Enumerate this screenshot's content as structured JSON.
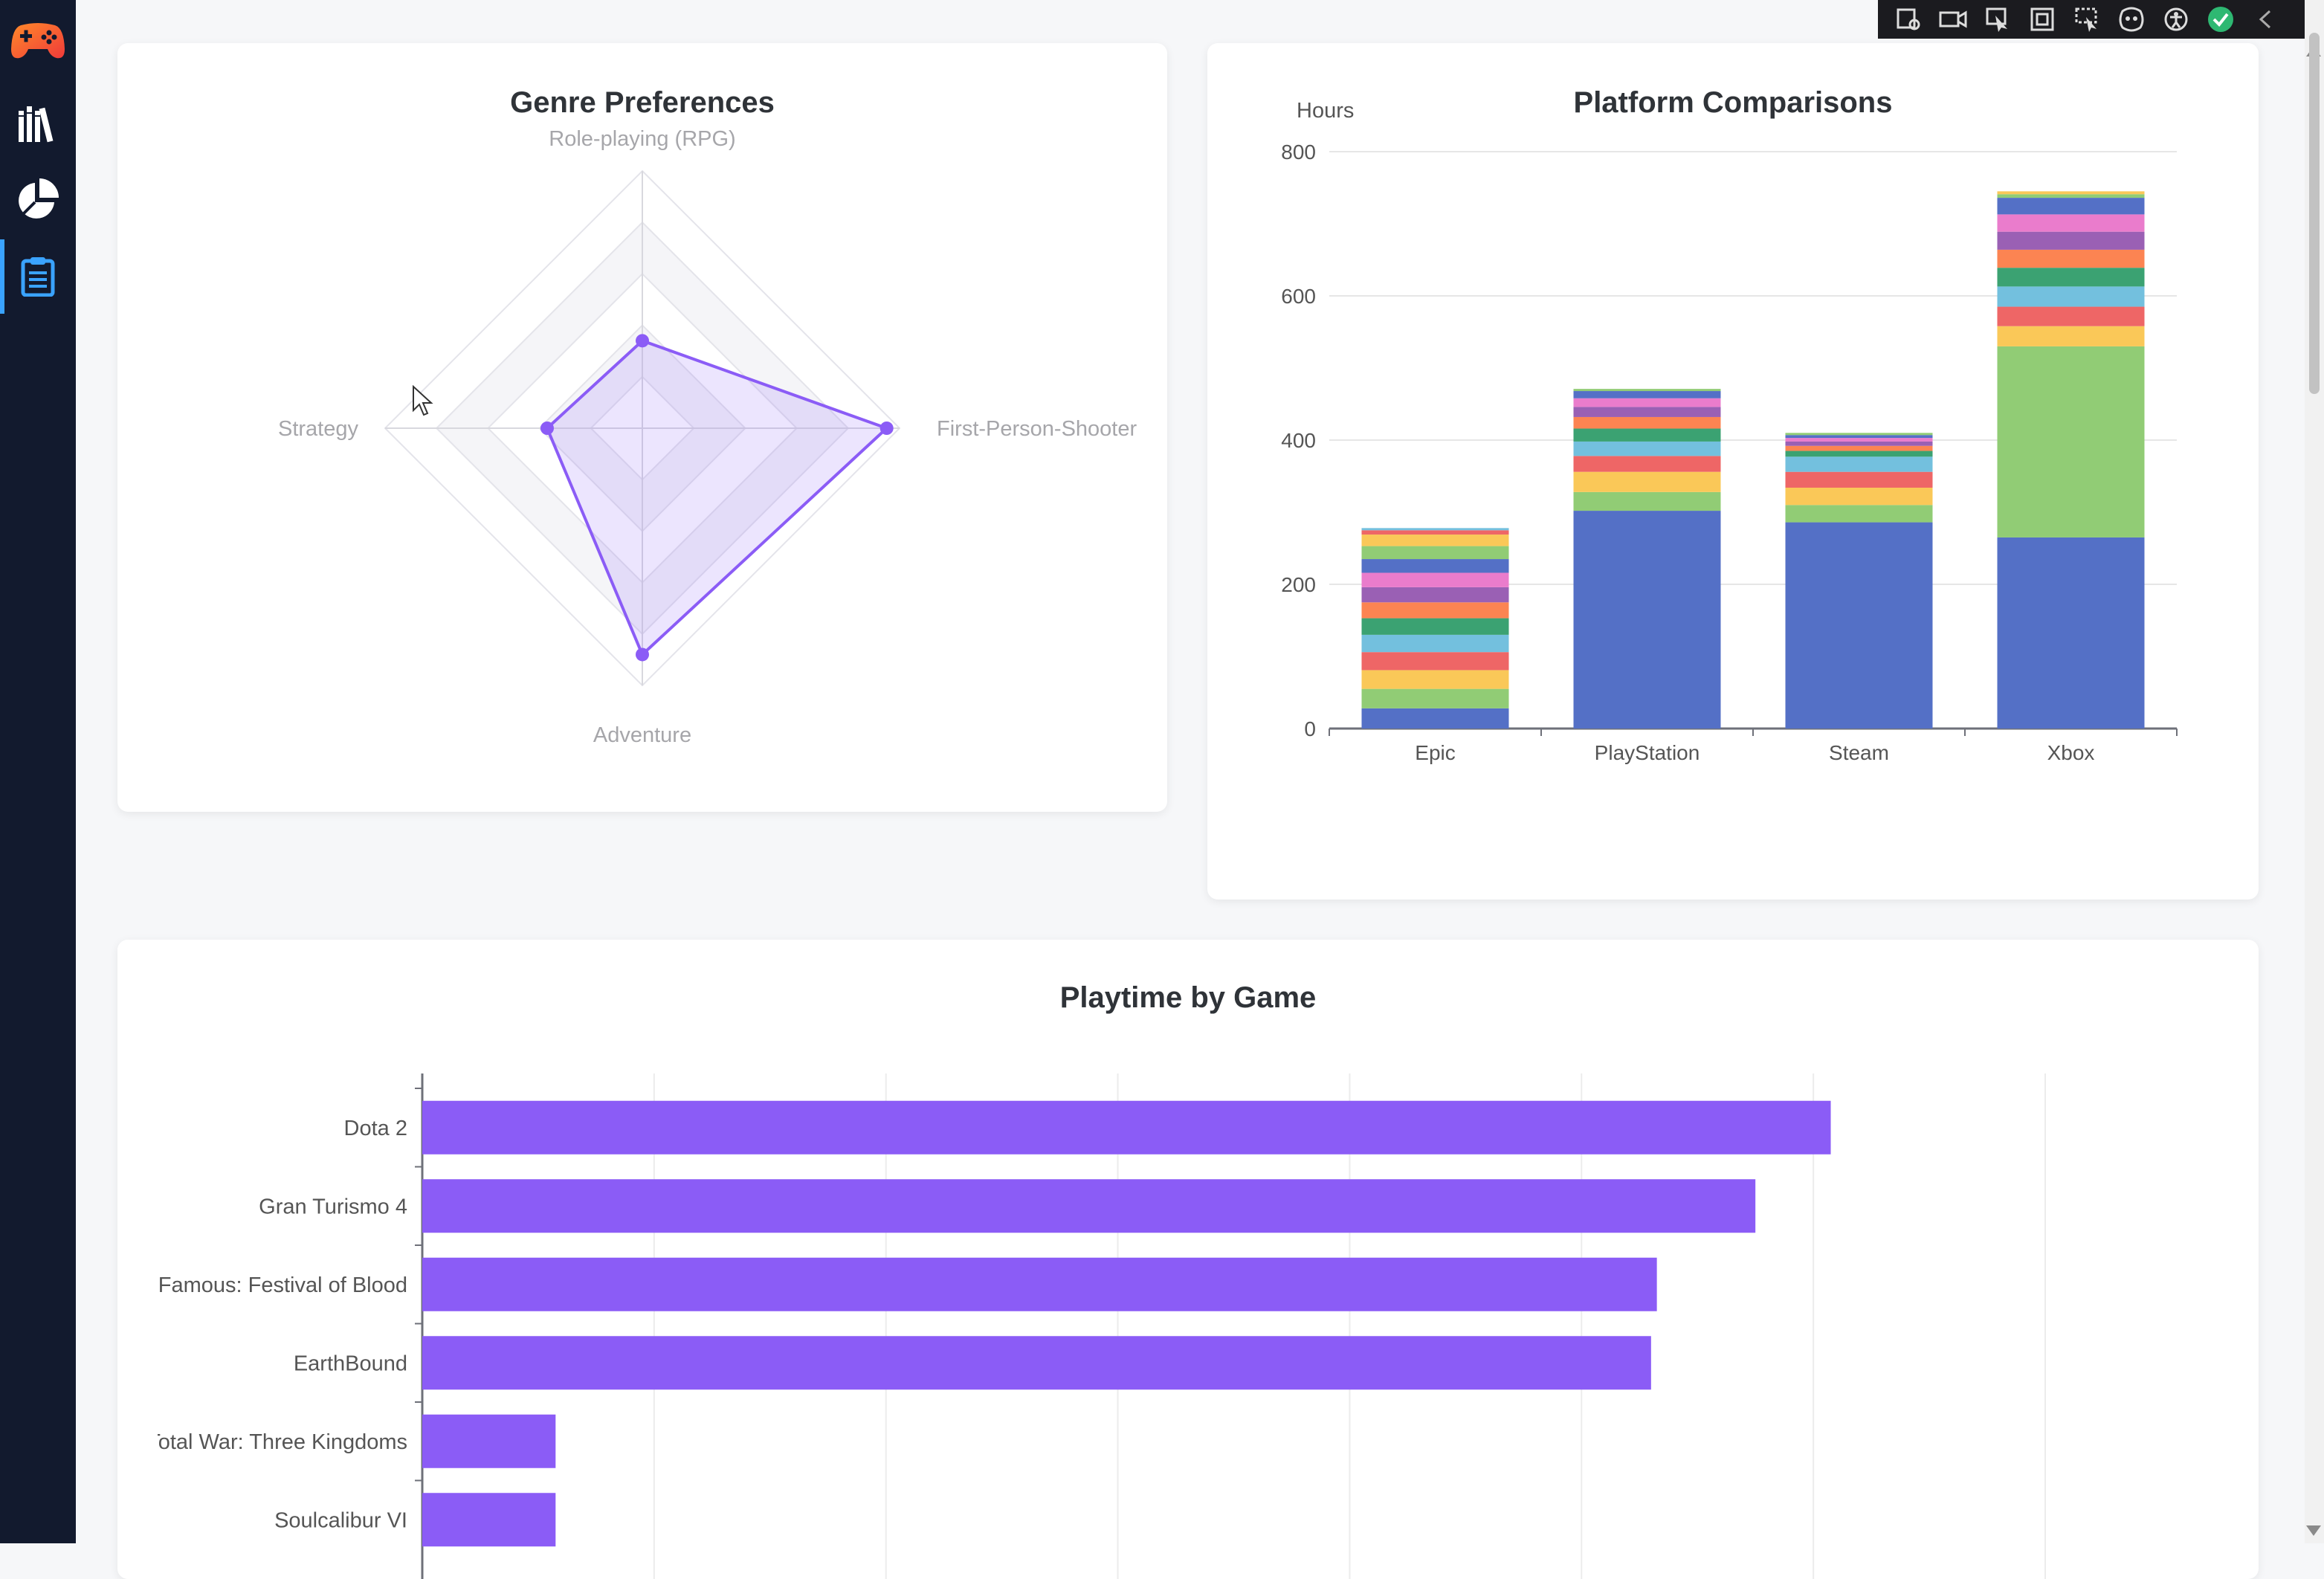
{
  "app": {
    "sidebar": {
      "items": [
        {
          "name": "gamepad-logo-icon"
        },
        {
          "name": "library-icon"
        },
        {
          "name": "pie-chart-icon"
        },
        {
          "name": "clipboard-icon",
          "active": true
        }
      ]
    },
    "toolbar": {
      "icons": [
        "inspect-icon",
        "video-icon",
        "select-icon",
        "frame-icon",
        "screen-select-icon",
        "ai-icon",
        "accessibility-icon",
        "check-icon",
        "collapse-icon"
      ]
    }
  },
  "genre_card": {
    "title": "Genre Preferences"
  },
  "platform_card": {
    "title": "Platform Comparisons"
  },
  "playtime_card": {
    "title": "Playtime by Game"
  },
  "colors": {
    "accent": "#8b5cf6",
    "palette": [
      "#5470c6",
      "#91cc75",
      "#fac858",
      "#ee6666",
      "#73c0de",
      "#3ba272",
      "#fc8452",
      "#9a60b4",
      "#ea7ccc"
    ]
  },
  "chart_data": [
    {
      "type": "radar",
      "title": "Genre Preferences",
      "indicators": [
        "Role-playing (RPG)",
        "First-Person-Shooter",
        "Adventure",
        "Strategy"
      ],
      "values": [
        34,
        95,
        88,
        37
      ],
      "max": 100,
      "color": "#8b5cf6"
    },
    {
      "type": "bar",
      "stacked": true,
      "title": "Platform Comparisons",
      "ylabel": "Hours",
      "ylim": [
        0,
        800
      ],
      "yticks": [
        0,
        200,
        400,
        600,
        800
      ],
      "categories": [
        "Epic",
        "PlayStation",
        "Steam",
        "Xbox"
      ],
      "stacks": [
        [
          28,
          27,
          26,
          25,
          24,
          23,
          22,
          21,
          20,
          19,
          18,
          16,
          6,
          3
        ],
        [
          302,
          26,
          28,
          22,
          20,
          18,
          16,
          14,
          12,
          10,
          3
        ],
        [
          286,
          24,
          24,
          22,
          21,
          8,
          7,
          6,
          5,
          4,
          3
        ],
        [
          265,
          265,
          28,
          27,
          28,
          26,
          25,
          25,
          24,
          23,
          5,
          4
        ]
      ]
    },
    {
      "type": "bar",
      "orientation": "horizontal",
      "title": "Playtime by Game",
      "categories": [
        "Dota 2",
        "Gran Turismo 4",
        "inFamous: Festival of Blood",
        "EarthBound",
        "Total War: Three Kingdoms",
        "Soulcalibur VI"
      ],
      "values": [
        243,
        230,
        213,
        212,
        23,
        23
      ],
      "xlim": [
        0,
        280
      ],
      "xgrid": [
        0,
        40,
        80,
        120,
        160,
        200,
        240,
        280
      ],
      "color": "#8b5cf6"
    }
  ]
}
